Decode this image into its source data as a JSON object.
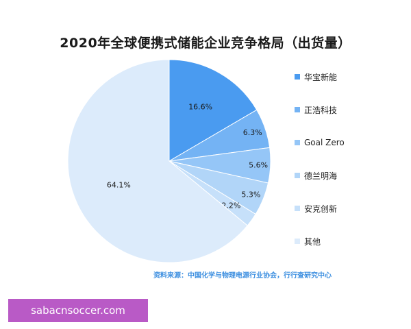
{
  "chart_data": {
    "type": "pie",
    "title": "2020年全球便携式储能企业竞争格局（出货量）",
    "slices": [
      {
        "label": "华宝新能",
        "value": 16.6,
        "value_label": "16.6%",
        "color": "#4a9bf0"
      },
      {
        "label": "正浩科技",
        "value": 6.3,
        "value_label": "6.3%",
        "color": "#74b3f4"
      },
      {
        "label": "Goal Zero",
        "value": 5.6,
        "value_label": "5.6%",
        "color": "#95c6f7"
      },
      {
        "label": "德兰明海",
        "value": 5.3,
        "value_label": "5.3%",
        "color": "#b1d5f8"
      },
      {
        "label": "安克创新",
        "value": 2.2,
        "value_label": "2.2%",
        "color": "#c6e0fa"
      },
      {
        "label": "其他",
        "value": 64.1,
        "value_label": "64.1%",
        "color": "#dcebfb"
      }
    ]
  },
  "source_text": "资料来源：中国化学与物理电源行业协会，行行查研究中心",
  "watermark_text": "sabacnsoccer.com"
}
